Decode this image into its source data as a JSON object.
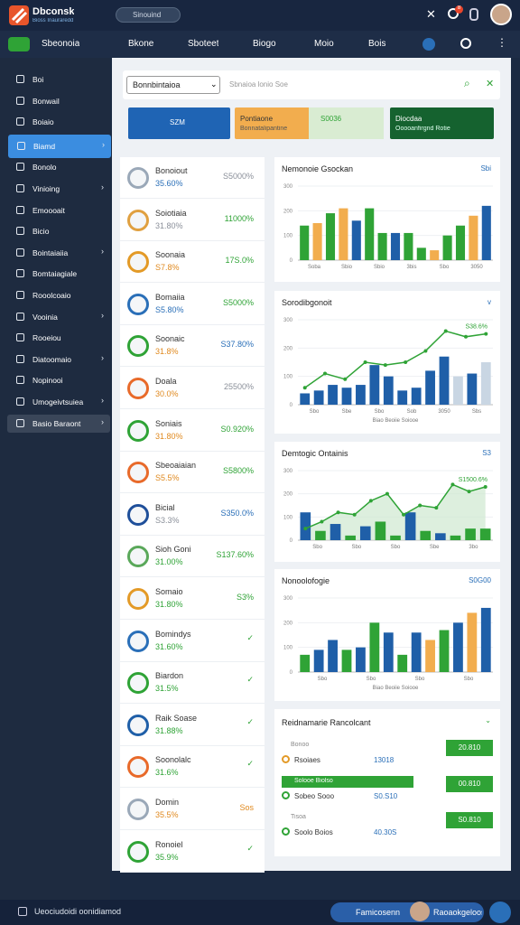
{
  "header": {
    "brand": "Dbconsk",
    "brand_sub": "Bioss Inauraredd",
    "search": "Sinouind",
    "badge": "8"
  },
  "nav": {
    "button": "Sbeonoia",
    "items": [
      "Bkone",
      "Sboteet",
      "Biogo",
      "Moio",
      "Bois"
    ]
  },
  "sidebar": {
    "active": 3,
    "items": [
      {
        "label": "Boi"
      },
      {
        "label": "Bonwail"
      },
      {
        "label": "Boiaio"
      },
      {
        "label": "Biamd",
        "expandable": true
      },
      {
        "label": "Bonolo"
      },
      {
        "label": "Vinioing",
        "expandable": true
      },
      {
        "label": "Emoooait"
      },
      {
        "label": "Bicio"
      },
      {
        "label": "Bointaiaiia",
        "expandable": true
      },
      {
        "label": "Bomtaiagiale"
      },
      {
        "label": "Rooolcoaio"
      },
      {
        "label": "Vooinia",
        "expandable": true
      },
      {
        "label": "Rooeiou"
      },
      {
        "label": "Diatoomaio",
        "expandable": true
      },
      {
        "label": "Nopinooi"
      },
      {
        "label": "Umogeivtsuiea",
        "expandable": true
      },
      {
        "label": "Basio Baraont",
        "expandable": true
      }
    ]
  },
  "filters": {
    "select": "Bonnbintaioa",
    "placeholder": "Sbnaioa lonio Soe"
  },
  "summary": [
    {
      "label": "SZM",
      "color": "#1f64b4"
    },
    {
      "label": "Pontiaone",
      "sub": "Bonnatalipantine",
      "value": "S0036",
      "color": "#f2ad4e"
    },
    {
      "label": "Diocdaa",
      "sub": "Ooooanfirgnd Rotie",
      "color": "#15622f"
    }
  ],
  "list": [
    {
      "name": "Bonoiout",
      "pct": "35.60%",
      "amount": "S5000%",
      "icon_color": "#9aa8b8",
      "pct_color": "#2a6fb8",
      "amount_color": "#8a8f99"
    },
    {
      "name": "Soiotiaia",
      "pct": "31.80%",
      "amount": "11000%",
      "icon_color": "#e0a040",
      "pct_color": "#8a8f99",
      "amount_color": "#2fa336"
    },
    {
      "name": "Soonaia",
      "pct": "S7.8%",
      "amount": "17S.0%",
      "icon_color": "#e39a27",
      "pct_color": "#e08a20",
      "amount_color": "#2fa336"
    },
    {
      "name": "Bomaiia",
      "pct": "S5.80%",
      "amount": "S5000%",
      "icon_color": "#2a6fb8",
      "pct_color": "#2a6fb8",
      "amount_color": "#2fa336"
    },
    {
      "name": "Soonaic",
      "pct": "31.8%",
      "amount": "S37.80%",
      "icon_color": "#2fa336",
      "pct_color": "#e08a20",
      "amount_color": "#2a6fb8"
    },
    {
      "name": "Doala",
      "pct": "30.0%",
      "amount": "25500%",
      "icon_color": "#e86a2a",
      "pct_color": "#e08a20",
      "amount_color": "#8a8f99"
    },
    {
      "name": "Soniais",
      "pct": "31.80%",
      "amount": "S0.920%",
      "icon_color": "#2fa336",
      "pct_color": "#e08a20",
      "amount_color": "#2fa336"
    },
    {
      "name": "Sbeoaiaian",
      "pct": "S5.5%",
      "amount": "S5800%",
      "icon_color": "#e86a2a",
      "pct_color": "#e08a20",
      "amount_color": "#2fa336"
    },
    {
      "name": "Bicial",
      "pct": "S3.3%",
      "amount": "S350.0%",
      "icon_color": "#1f4f9a",
      "pct_color": "#8a8f99",
      "amount_color": "#2a6fb8"
    },
    {
      "name": "Sioh Goni",
      "pct": "31.00%",
      "amount": "S137.60%",
      "icon_color": "#5aa85a",
      "pct_color": "#2fa336",
      "amount_color": "#2fa336"
    },
    {
      "name": "Somaio",
      "pct": "31.80%",
      "amount": "S3%",
      "icon_color": "#e39a27",
      "pct_color": "#2fa336",
      "amount_color": "#2fa336"
    },
    {
      "name": "Bomindys",
      "pct": "31.60%",
      "icon_color": "#2a6fb8",
      "pct_color": "#2fa336",
      "amount_color": "#2fa336"
    },
    {
      "name": "Biardon",
      "pct": "31.5%",
      "icon_color": "#2fa336",
      "pct_color": "#2fa336",
      "amount_color": "#2fa336"
    },
    {
      "name": "Raik Soase",
      "pct": "31.88%",
      "icon_color": "#1f5fa8",
      "pct_color": "#2fa336",
      "amount_color": "#2fa336"
    },
    {
      "name": "Soonolalc",
      "pct": "31.6%",
      "icon_color": "#e86a2a",
      "pct_color": "#2fa336",
      "amount_color": "#2fa336"
    },
    {
      "name": "Domin",
      "pct": "35.5%",
      "amount": "Sos",
      "icon_color": "#9aa8b8",
      "pct_color": "#e08a20",
      "amount_color": "#e08a20"
    },
    {
      "name": "Ronoiel",
      "pct": "35.9%",
      "icon_color": "#2fa336",
      "pct_color": "#2fa336",
      "amount_color": "#2fa336"
    }
  ],
  "charts": [
    {
      "title": "Nemonoie Gsockan",
      "action": "Sbi",
      "ylim": [
        0,
        300
      ],
      "yticks": [
        0,
        100,
        200,
        300
      ],
      "xlabels": [
        "Soba",
        "Sbio",
        "Sbio",
        "3bis",
        "Sbo",
        "3050"
      ],
      "bars": [
        140,
        150,
        190,
        210,
        160,
        210,
        110,
        110,
        110,
        50,
        40,
        100,
        140,
        180,
        220
      ],
      "bar_colors": [
        "#2fa336",
        "#f2ad4e",
        "#2fa336",
        "#f2ad4e",
        "#1f5fa8",
        "#2fa336",
        "#2fa336",
        "#1f5fa8",
        "#2fa336",
        "#2fa336",
        "#f2ad4e",
        "#2fa336",
        "#2fa336",
        "#f2ad4e",
        "#1f5fa8"
      ]
    },
    {
      "title": "Sorodibgonoit",
      "action": "v",
      "ylim": [
        0,
        300
      ],
      "yticks": [
        0,
        100,
        200,
        300
      ],
      "xlabels": [
        "Sbo",
        "Sbe",
        "Sbo",
        "Sob",
        "3050",
        "Sbs"
      ],
      "x_title": "Biao Beoiie Soiooe",
      "bars": [
        40,
        50,
        70,
        60,
        70,
        140,
        100,
        50,
        60,
        120,
        170,
        100,
        110,
        150
      ],
      "bar_colors": [
        "#1f5fa8",
        "#1f5fa8",
        "#1f5fa8",
        "#1f5fa8",
        "#1f5fa8",
        "#1f5fa8",
        "#1f5fa8",
        "#1f5fa8",
        "#1f5fa8",
        "#1f5fa8",
        "#1f5fa8",
        "#c9d6e3",
        "#1f5fa8",
        "#c9d6e3"
      ],
      "line": [
        60,
        110,
        90,
        150,
        140,
        150,
        190,
        260,
        240,
        250
      ],
      "line_color": "#2fa336",
      "line_label": "S38.6%"
    },
    {
      "title": "Demtogic Ontainis",
      "action": "S3",
      "ylim": [
        0,
        300
      ],
      "yticks": [
        0,
        100,
        200,
        300
      ],
      "xlabels": [
        "Sbo",
        "Sbo",
        "Sbo",
        "Sbe",
        "3bo"
      ],
      "bars": [
        120,
        40,
        70,
        20,
        60,
        80,
        20,
        120,
        40,
        30,
        20,
        50,
        50
      ],
      "bar_colors": [
        "#1f5fa8",
        "#2fa336",
        "#1f5fa8",
        "#2fa336",
        "#1f5fa8",
        "#2fa336",
        "#2fa336",
        "#1f5fa8",
        "#2fa336",
        "#1f5fa8",
        "#2fa336",
        "#2fa336",
        "#2fa336"
      ],
      "line": [
        50,
        80,
        120,
        110,
        170,
        200,
        110,
        150,
        140,
        240,
        210,
        230
      ],
      "line_color": "#2fa336",
      "area": true,
      "line_label": "S1500.6%"
    },
    {
      "title": "Nonoolofogie",
      "action": "S0G00",
      "ylim": [
        0,
        300
      ],
      "yticks": [
        0,
        100,
        200,
        300
      ],
      "xlabels": [
        "Sbo",
        "Sbo",
        "Sbo",
        "Sbo"
      ],
      "x_title": "Biao Beoiie Soiooe",
      "bars": [
        70,
        90,
        130,
        90,
        100,
        200,
        160,
        70,
        160,
        130,
        170,
        200,
        240,
        260
      ],
      "bar_colors": [
        "#2fa336",
        "#1f5fa8",
        "#1f5fa8",
        "#2fa336",
        "#1f5fa8",
        "#2fa336",
        "#1f5fa8",
        "#2fa336",
        "#1f5fa8",
        "#f2ad4e",
        "#2fa336",
        "#1f5fa8",
        "#f2ad4e",
        "#1f5fa8"
      ]
    }
  ],
  "table": {
    "title": "Reidnamarie Rancolcant",
    "rows": [
      {
        "tag": "Bonoo",
        "label": "Rsoiaes",
        "value": "13018",
        "button": "20.810"
      },
      {
        "tag": "Solooe Biolso",
        "label": "Sobeo Sooo",
        "value": "S0.S10",
        "button": "00.810"
      },
      {
        "tag": "Tisoa",
        "label": "Soolo Boios",
        "value": "40.30S",
        "button": "S0.810"
      }
    ]
  },
  "footer": {
    "text": "Ueociudoidi oonidiamod",
    "button": "Famicosenn",
    "right": "Raoaokgeloos"
  }
}
